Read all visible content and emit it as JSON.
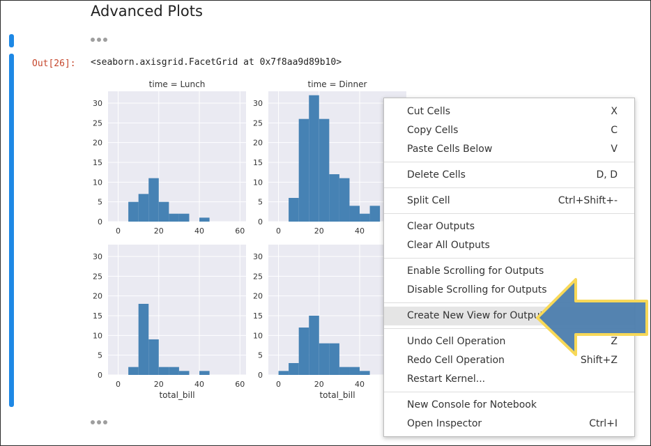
{
  "notebook": {
    "heading": "Advanced Plots",
    "prompt": "Out[26]:",
    "output_repr": "<seaborn.axisgrid.FacetGrid at 0x7f8aa9d89b10>"
  },
  "colors": {
    "accent": "#1e88e5",
    "bar": "#4682b4",
    "axes_bg": "#eaeaf2",
    "arrow_fill": "#4e7fae",
    "arrow_edge": "#f7d858"
  },
  "context_menu": {
    "groups": [
      [
        {
          "label": "Cut Cells",
          "shortcut": "X"
        },
        {
          "label": "Copy Cells",
          "shortcut": "C"
        },
        {
          "label": "Paste Cells Below",
          "shortcut": "V"
        }
      ],
      [
        {
          "label": "Delete Cells",
          "shortcut": "D, D"
        }
      ],
      [
        {
          "label": "Split Cell",
          "shortcut": "Ctrl+Shift+-"
        }
      ],
      [
        {
          "label": "Clear Outputs",
          "shortcut": ""
        },
        {
          "label": "Clear All Outputs",
          "shortcut": ""
        }
      ],
      [
        {
          "label": "Enable Scrolling for Outputs",
          "shortcut": ""
        },
        {
          "label": "Disable Scrolling for Outputs",
          "shortcut": ""
        }
      ],
      [
        {
          "label": "Create New View for Output",
          "shortcut": "",
          "highlighted": true
        }
      ],
      [
        {
          "label": "Undo Cell Operation",
          "shortcut": "Z"
        },
        {
          "label": "Redo Cell Operation",
          "shortcut": "Shift+Z"
        },
        {
          "label": "Restart Kernel...",
          "shortcut": ""
        }
      ],
      [
        {
          "label": "New Console for Notebook",
          "shortcut": ""
        },
        {
          "label": "Open Inspector",
          "shortcut": "Ctrl+I"
        }
      ]
    ]
  },
  "chart_data": [
    {
      "type": "bar",
      "title": "time = Lunch",
      "xlabel": "",
      "ylabel": "",
      "xlim": [
        -5,
        63
      ],
      "ylim": [
        0,
        33
      ],
      "xticks": [
        0,
        20,
        40,
        60
      ],
      "yticks": [
        0,
        5,
        10,
        15,
        20,
        25,
        30
      ],
      "bins": [
        [
          5,
          10,
          5
        ],
        [
          10,
          15,
          7
        ],
        [
          15,
          20,
          11
        ],
        [
          20,
          25,
          5
        ],
        [
          25,
          30,
          2
        ],
        [
          30,
          35,
          2
        ],
        [
          40,
          45,
          1
        ]
      ]
    },
    {
      "type": "bar",
      "title": "time = Dinner",
      "xlabel": "",
      "ylabel": "",
      "xlim": [
        -5,
        63
      ],
      "ylim": [
        0,
        33
      ],
      "xticks": [
        0,
        20,
        40
      ],
      "yticks": [
        0,
        5,
        10,
        15,
        20,
        25,
        30
      ],
      "bins": [
        [
          5,
          10,
          6
        ],
        [
          10,
          15,
          26
        ],
        [
          15,
          20,
          32
        ],
        [
          20,
          25,
          26
        ],
        [
          25,
          30,
          12
        ],
        [
          30,
          35,
          11
        ],
        [
          35,
          40,
          4
        ],
        [
          40,
          45,
          2
        ],
        [
          45,
          50,
          4
        ]
      ]
    },
    {
      "type": "bar",
      "title": "",
      "xlabel": "total_bill",
      "ylabel": "",
      "xlim": [
        -5,
        63
      ],
      "ylim": [
        0,
        33
      ],
      "xticks": [
        0,
        20,
        40,
        60
      ],
      "yticks": [
        0,
        5,
        10,
        15,
        20,
        25,
        30
      ],
      "bins": [
        [
          5,
          10,
          2
        ],
        [
          10,
          15,
          18
        ],
        [
          15,
          20,
          9
        ],
        [
          20,
          25,
          2
        ],
        [
          25,
          30,
          2
        ],
        [
          30,
          35,
          1
        ],
        [
          40,
          45,
          1
        ]
      ]
    },
    {
      "type": "bar",
      "title": "",
      "xlabel": "total_bill",
      "ylabel": "",
      "xlim": [
        -5,
        63
      ],
      "ylim": [
        0,
        33
      ],
      "xticks": [
        0,
        20,
        40
      ],
      "yticks": [
        0,
        5,
        10,
        15,
        20,
        25,
        30
      ],
      "bins": [
        [
          0,
          5,
          1
        ],
        [
          5,
          10,
          3
        ],
        [
          10,
          15,
          12
        ],
        [
          15,
          20,
          15
        ],
        [
          20,
          25,
          8
        ],
        [
          25,
          30,
          8
        ],
        [
          30,
          35,
          2
        ],
        [
          35,
          40,
          2
        ],
        [
          40,
          45,
          1
        ]
      ]
    }
  ]
}
